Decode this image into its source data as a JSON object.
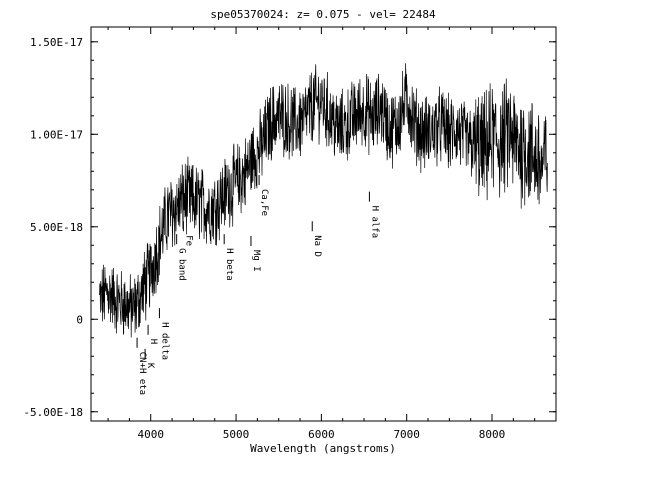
{
  "chart_data": {
    "type": "line",
    "title": "spe05370024: z= 0.075 - vel= 22484",
    "xlabel": "Wavelength (angstroms)",
    "ylabel": "",
    "xlim": [
      3300,
      8750
    ],
    "ylim": [
      -5.5e-18,
      1.58e-17
    ],
    "x_ticks": [
      4000,
      5000,
      6000,
      7000,
      8000
    ],
    "y_ticks": [
      {
        "value": 1.5e-17,
        "label": "1.50E-17"
      },
      {
        "value": 1e-17,
        "label": "1.00E-17"
      },
      {
        "value": 5e-18,
        "label": "5.00E-18"
      },
      {
        "value": 0,
        "label": "0"
      },
      {
        "value": -5e-18,
        "label": "-5.00E-18"
      }
    ],
    "grid": false,
    "series": [
      {
        "x": [
          3400,
          3500,
          3600,
          3700,
          3800,
          3900,
          4000,
          4100,
          4200,
          4300,
          4400,
          4500,
          4600,
          4700,
          4800,
          4900,
          5000,
          5100,
          5200,
          5300,
          5400,
          5500,
          5600,
          5700,
          5800,
          5900,
          6000,
          6100,
          6200,
          6300,
          6400,
          6500,
          6600,
          6700,
          6800,
          6900,
          7000,
          7100,
          7200,
          7300,
          7400,
          7500,
          7600,
          7700,
          7800,
          7900,
          8000,
          8100,
          8200,
          8300,
          8400,
          8500,
          8600,
          8650
        ],
        "values": [
          1e-18,
          1.5e-18,
          1e-18,
          8e-19,
          5e-19,
          1.5e-18,
          2.5e-18,
          4.2e-18,
          5.6e-18,
          6e-18,
          6.6e-18,
          6.4e-18,
          6.2e-18,
          6e-18,
          6.3e-18,
          7e-18,
          7.4e-18,
          7.8e-18,
          8.8e-18,
          9.3e-18,
          1.06e-17,
          1.1e-17,
          1.08e-17,
          1.05e-17,
          1.08e-17,
          1.16e-17,
          1.18e-17,
          1.1e-17,
          1.02e-17,
          1.05e-17,
          1.1e-17,
          1.14e-17,
          1.08e-17,
          1.15e-17,
          1.02e-17,
          1.06e-17,
          1.2e-17,
          1.05e-17,
          1e-17,
          1.02e-17,
          1.05e-17,
          1e-17,
          1.02e-17,
          9.6e-18,
          9.4e-18,
          9e-18,
          9.8e-18,
          9.5e-18,
          1e-17,
          9.3e-18,
          9.2e-18,
          8.8e-18,
          8.2e-18,
          9e-18
        ],
        "noise_amplitude": 1.8e-18
      }
    ],
    "annotations": [
      {
        "label": "K",
        "x": 3934,
        "y": -1.6e-18
      },
      {
        "label": "H",
        "x": 3969,
        "y": -3e-19
      },
      {
        "label": "CN+H eta",
        "x": 3840,
        "y": -1e-18
      },
      {
        "label": "H delta",
        "x": 4102,
        "y": 6e-19
      },
      {
        "label": "G band",
        "x": 4304,
        "y": 4.6e-18
      },
      {
        "label": "Fe",
        "x": 4383,
        "y": 5.3e-18
      },
      {
        "label": "H beta",
        "x": 4861,
        "y": 4.6e-18
      },
      {
        "label": "Mg I",
        "x": 5175,
        "y": 4.5e-18
      },
      {
        "label": "Ca,Fe",
        "x": 5270,
        "y": 7.8e-18
      },
      {
        "label": "Na D",
        "x": 5893,
        "y": 5.3e-18
      },
      {
        "label": "H alfa",
        "x": 6563,
        "y": 6.9e-18
      }
    ]
  }
}
